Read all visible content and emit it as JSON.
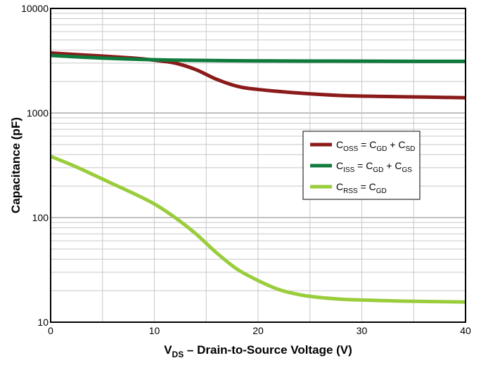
{
  "chart_data": {
    "type": "line",
    "title": "",
    "xlabel": {
      "main": "V",
      "sub": "DS",
      "rest": " – Drain-to-Source Voltage (V)"
    },
    "ylabel": "Capacitance (pF)",
    "xlim": [
      0,
      40
    ],
    "ylim": [
      10,
      10000
    ],
    "yscale": "log",
    "grid": true,
    "legend_position": "right",
    "x_ticks": [
      "0",
      "10",
      "20",
      "30",
      "40"
    ],
    "y_ticks": [
      "10",
      "100",
      "1000",
      "10000"
    ],
    "series": [
      {
        "legend": {
          "lhs": "C",
          "lhs_sub": "OSS",
          "rhs1": "C",
          "rhs1_sub": "GD",
          "rhs2": "C",
          "rhs2_sub": "SD"
        },
        "color": "#8b1a1a",
        "x": [
          0,
          4,
          8,
          10,
          12,
          14,
          16,
          18,
          20,
          24,
          28,
          32,
          36,
          40
        ],
        "y": [
          3750,
          3550,
          3350,
          3200,
          3000,
          2600,
          2100,
          1800,
          1680,
          1550,
          1470,
          1440,
          1420,
          1400
        ]
      },
      {
        "legend": {
          "lhs": "C",
          "lhs_sub": "ISS",
          "rhs1": "C",
          "rhs1_sub": "GD",
          "rhs2": "C",
          "rhs2_sub": "GS"
        },
        "color": "#0e7a3c",
        "x": [
          0,
          5,
          10,
          15,
          20,
          25,
          30,
          35,
          40
        ],
        "y": [
          3550,
          3350,
          3230,
          3180,
          3150,
          3140,
          3130,
          3120,
          3120
        ]
      },
      {
        "legend": {
          "lhs": "C",
          "lhs_sub": "RSS",
          "rhs1": "C",
          "rhs1_sub": "GD"
        },
        "color": "#9acd3c",
        "x": [
          0,
          2,
          4,
          6,
          8,
          10,
          12,
          14,
          16,
          18,
          20,
          22,
          24,
          26,
          28,
          30,
          34,
          40
        ],
        "y": [
          385,
          320,
          260,
          210,
          170,
          135,
          100,
          70,
          46,
          32,
          25,
          20.5,
          18.3,
          17.2,
          16.6,
          16.3,
          15.9,
          15.6
        ]
      }
    ]
  }
}
